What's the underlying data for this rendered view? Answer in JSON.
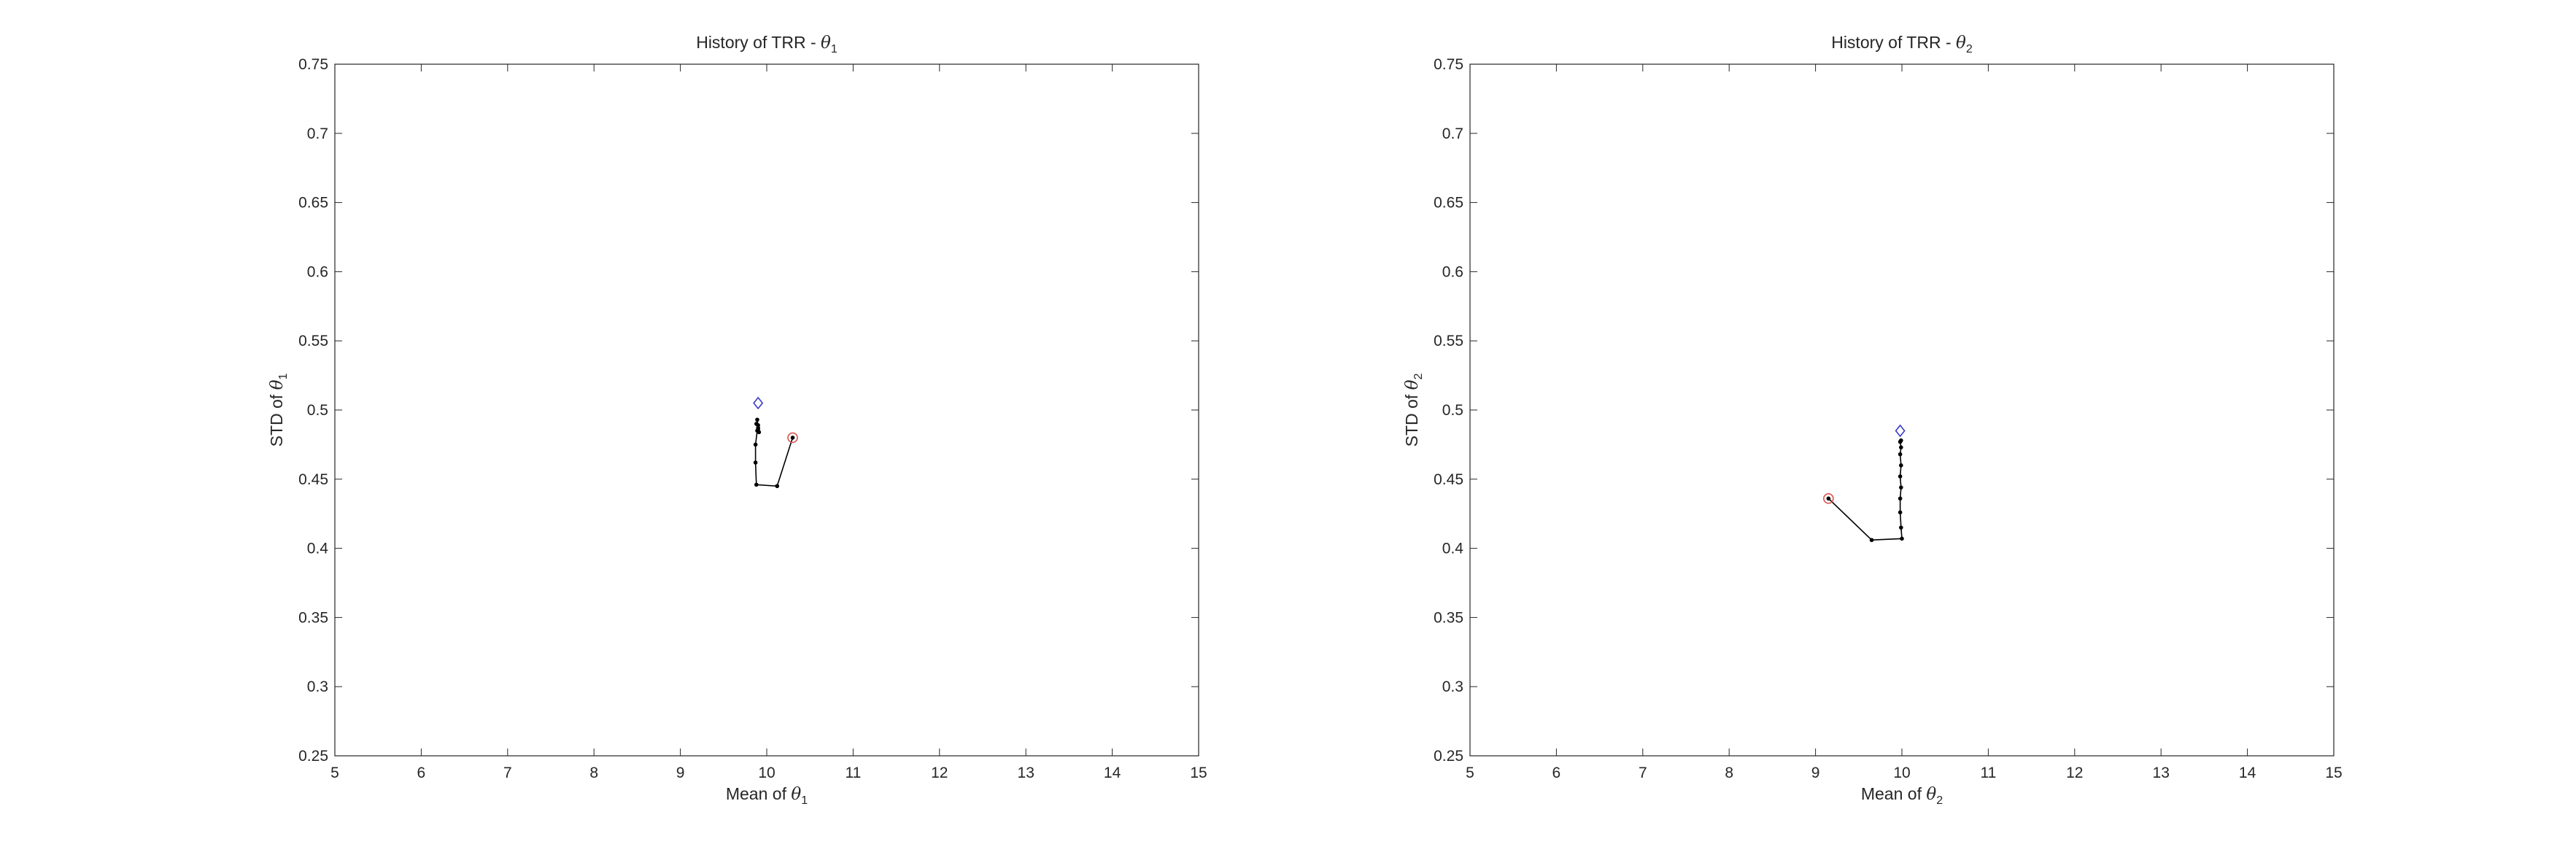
{
  "chart_data": [
    {
      "type": "line",
      "title": "History of TRR - θ1",
      "title_parts": {
        "prefix": "History of TRR - ",
        "symbol": "θ",
        "subscript": "1"
      },
      "xlabel": "Mean of θ1",
      "xlabel_parts": {
        "prefix": "Mean of ",
        "symbol": "θ",
        "subscript": "1"
      },
      "ylabel": "STD of θ1",
      "ylabel_parts": {
        "prefix": "STD of ",
        "symbol": "θ",
        "subscript": "1"
      },
      "xlim": [
        5,
        15
      ],
      "ylim": [
        0.25,
        0.75
      ],
      "xticks": [
        "5",
        "6",
        "7",
        "8",
        "9",
        "10",
        "11",
        "12",
        "13",
        "14",
        "15"
      ],
      "yticks": [
        "0.25",
        "0.3",
        "0.35",
        "0.4",
        "0.45",
        "0.5",
        "0.55",
        "0.6",
        "0.65",
        "0.7",
        "0.75"
      ],
      "grid": false,
      "series": [
        {
          "points": [
            [
              10.3,
              0.48
            ],
            [
              10.12,
              0.445
            ],
            [
              9.88,
              0.446
            ],
            [
              9.87,
              0.462
            ],
            [
              9.87,
              0.475
            ],
            [
              9.89,
              0.485
            ],
            [
              9.9,
              0.489
            ],
            [
              9.9,
              0.486
            ],
            [
              9.88,
              0.49
            ],
            [
              9.9,
              0.487
            ],
            [
              9.91,
              0.484
            ],
            [
              9.89,
              0.493
            ]
          ],
          "color": "#000000"
        }
      ],
      "start_marker": {
        "x": 10.3,
        "y": 0.48,
        "shape": "circle",
        "color": "#d9534f"
      },
      "end_marker": {
        "x": 9.9,
        "y": 0.505,
        "shape": "diamond",
        "color": "#3a3acc"
      }
    },
    {
      "type": "line",
      "title": "History of TRR - θ2",
      "title_parts": {
        "prefix": "History of TRR - ",
        "symbol": "θ",
        "subscript": "2"
      },
      "xlabel": "Mean of θ2",
      "xlabel_parts": {
        "prefix": "Mean of ",
        "symbol": "θ",
        "subscript": "2"
      },
      "ylabel": "STD of θ2",
      "ylabel_parts": {
        "prefix": "STD of ",
        "symbol": "θ",
        "subscript": "2"
      },
      "xlim": [
        5,
        15
      ],
      "ylim": [
        0.25,
        0.75
      ],
      "xticks": [
        "5",
        "6",
        "7",
        "8",
        "9",
        "10",
        "11",
        "12",
        "13",
        "14",
        "15"
      ],
      "yticks": [
        "0.25",
        "0.3",
        "0.35",
        "0.4",
        "0.45",
        "0.5",
        "0.55",
        "0.6",
        "0.65",
        "0.7",
        "0.75"
      ],
      "grid": false,
      "series": [
        {
          "points": [
            [
              9.15,
              0.436
            ],
            [
              9.65,
              0.406
            ],
            [
              10.0,
              0.407
            ],
            [
              9.99,
              0.415
            ],
            [
              9.98,
              0.426
            ],
            [
              9.98,
              0.436
            ],
            [
              9.99,
              0.444
            ],
            [
              9.98,
              0.452
            ],
            [
              9.99,
              0.46
            ],
            [
              9.98,
              0.468
            ],
            [
              9.99,
              0.473
            ],
            [
              9.98,
              0.477
            ],
            [
              9.99,
              0.478
            ]
          ],
          "color": "#000000"
        }
      ],
      "start_marker": {
        "x": 9.15,
        "y": 0.436,
        "shape": "circle",
        "color": "#d9534f"
      },
      "end_marker": {
        "x": 9.98,
        "y": 0.485,
        "shape": "diamond",
        "color": "#3a3acc"
      }
    }
  ]
}
